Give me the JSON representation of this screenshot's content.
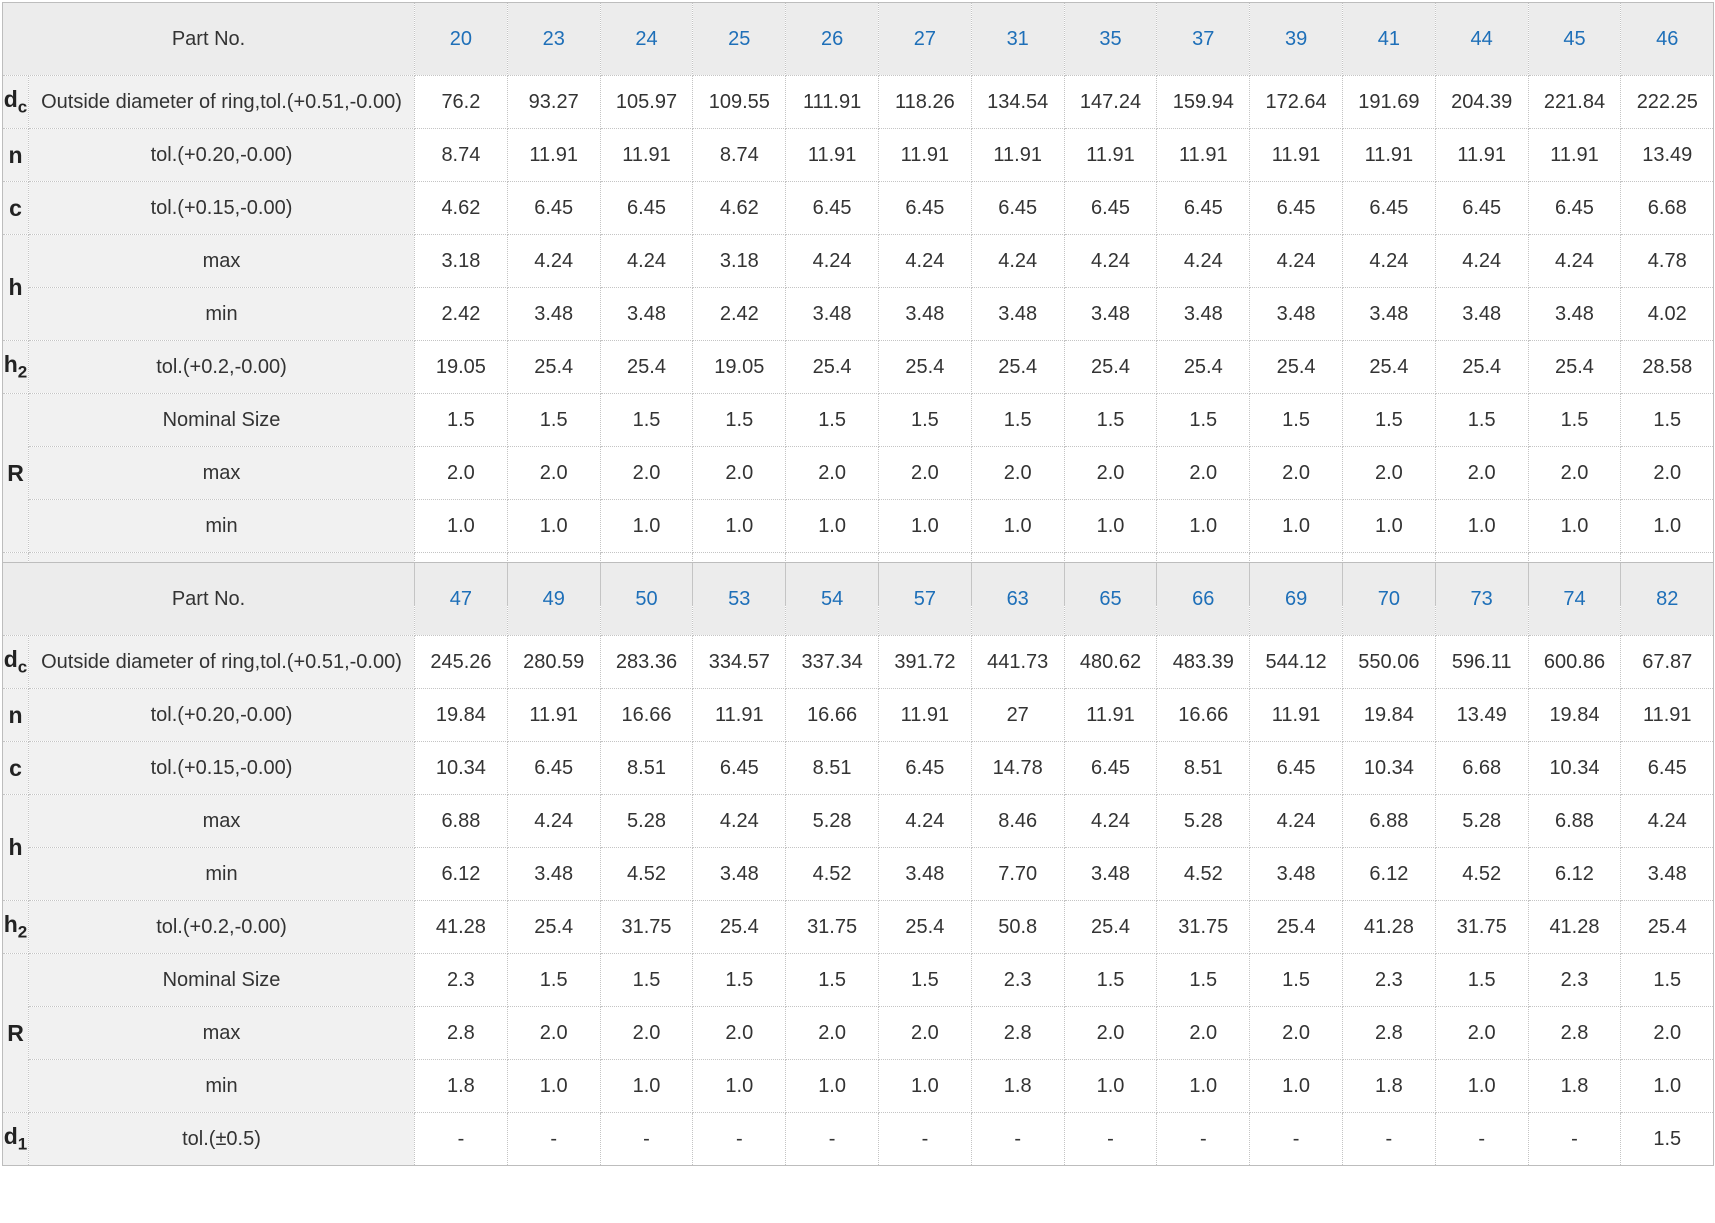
{
  "header_label": "Part No.",
  "row_labels": [
    {
      "sym": "d",
      "sub": "c",
      "desc": "Outside diameter of ring,tol.(+0.51,-0.00)"
    },
    {
      "sym": "n",
      "sub": "",
      "desc": "tol.(+0.20,-0.00)"
    },
    {
      "sym": "c",
      "sub": "",
      "desc": "tol.(+0.15,-0.00)"
    },
    {
      "sym": "h",
      "sub": "",
      "desc": "max"
    },
    {
      "sym": "",
      "sub": "",
      "desc": "min"
    },
    {
      "sym": "h",
      "sub": "2",
      "desc": "tol.(+0.2,-0.00)"
    },
    {
      "sym": "R",
      "sub": "",
      "desc": "Nominal Size"
    },
    {
      "sym": "",
      "sub": "",
      "desc": "max"
    },
    {
      "sym": "",
      "sub": "",
      "desc": "min"
    },
    {
      "sym": "d",
      "sub": "1",
      "desc": "tol.(±0.5)"
    }
  ],
  "tables": [
    {
      "part_numbers": [
        "20",
        "23",
        "24",
        "25",
        "26",
        "27",
        "31",
        "35",
        "37",
        "39",
        "41",
        "44",
        "45",
        "46"
      ],
      "rows": [
        [
          "76.2",
          "93.27",
          "105.97",
          "109.55",
          "111.91",
          "118.26",
          "134.54",
          "147.24",
          "159.94",
          "172.64",
          "191.69",
          "204.39",
          "221.84",
          "222.25"
        ],
        [
          "8.74",
          "11.91",
          "11.91",
          "8.74",
          "11.91",
          "11.91",
          "11.91",
          "11.91",
          "11.91",
          "11.91",
          "11.91",
          "11.91",
          "11.91",
          "13.49"
        ],
        [
          "4.62",
          "6.45",
          "6.45",
          "4.62",
          "6.45",
          "6.45",
          "6.45",
          "6.45",
          "6.45",
          "6.45",
          "6.45",
          "6.45",
          "6.45",
          "6.68"
        ],
        [
          "3.18",
          "4.24",
          "4.24",
          "3.18",
          "4.24",
          "4.24",
          "4.24",
          "4.24",
          "4.24",
          "4.24",
          "4.24",
          "4.24",
          "4.24",
          "4.78"
        ],
        [
          "2.42",
          "3.48",
          "3.48",
          "2.42",
          "3.48",
          "3.48",
          "3.48",
          "3.48",
          "3.48",
          "3.48",
          "3.48",
          "3.48",
          "3.48",
          "4.02"
        ],
        [
          "19.05",
          "25.4",
          "25.4",
          "19.05",
          "25.4",
          "25.4",
          "25.4",
          "25.4",
          "25.4",
          "25.4",
          "25.4",
          "25.4",
          "25.4",
          "28.58"
        ],
        [
          "1.5",
          "1.5",
          "1.5",
          "1.5",
          "1.5",
          "1.5",
          "1.5",
          "1.5",
          "1.5",
          "1.5",
          "1.5",
          "1.5",
          "1.5",
          "1.5"
        ],
        [
          "2.0",
          "2.0",
          "2.0",
          "2.0",
          "2.0",
          "2.0",
          "2.0",
          "2.0",
          "2.0",
          "2.0",
          "2.0",
          "2.0",
          "2.0",
          "2.0"
        ],
        [
          "1.0",
          "1.0",
          "1.0",
          "1.0",
          "1.0",
          "1.0",
          "1.0",
          "1.0",
          "1.0",
          "1.0",
          "1.0",
          "1.0",
          "1.0",
          "1.0"
        ],
        [
          "-",
          "-",
          "-",
          "-",
          "-",
          "-",
          "-",
          "-",
          "-",
          "-",
          "-",
          "-",
          "-",
          "-"
        ]
      ]
    },
    {
      "part_numbers": [
        "47",
        "49",
        "50",
        "53",
        "54",
        "57",
        "63",
        "65",
        "66",
        "69",
        "70",
        "73",
        "74",
        "82"
      ],
      "rows": [
        [
          "245.26",
          "280.59",
          "283.36",
          "334.57",
          "337.34",
          "391.72",
          "441.73",
          "480.62",
          "483.39",
          "544.12",
          "550.06",
          "596.11",
          "600.86",
          "67.87"
        ],
        [
          "19.84",
          "11.91",
          "16.66",
          "11.91",
          "16.66",
          "11.91",
          "27",
          "11.91",
          "16.66",
          "11.91",
          "19.84",
          "13.49",
          "19.84",
          "11.91"
        ],
        [
          "10.34",
          "6.45",
          "8.51",
          "6.45",
          "8.51",
          "6.45",
          "14.78",
          "6.45",
          "8.51",
          "6.45",
          "10.34",
          "6.68",
          "10.34",
          "6.45"
        ],
        [
          "6.88",
          "4.24",
          "5.28",
          "4.24",
          "5.28",
          "4.24",
          "8.46",
          "4.24",
          "5.28",
          "4.24",
          "6.88",
          "5.28",
          "6.88",
          "4.24"
        ],
        [
          "6.12",
          "3.48",
          "4.52",
          "3.48",
          "4.52",
          "3.48",
          "7.70",
          "3.48",
          "4.52",
          "3.48",
          "6.12",
          "4.52",
          "6.12",
          "3.48"
        ],
        [
          "41.28",
          "25.4",
          "31.75",
          "25.4",
          "31.75",
          "25.4",
          "50.8",
          "25.4",
          "31.75",
          "25.4",
          "41.28",
          "31.75",
          "41.28",
          "25.4"
        ],
        [
          "2.3",
          "1.5",
          "1.5",
          "1.5",
          "1.5",
          "1.5",
          "2.3",
          "1.5",
          "1.5",
          "1.5",
          "2.3",
          "1.5",
          "2.3",
          "1.5"
        ],
        [
          "2.8",
          "2.0",
          "2.0",
          "2.0",
          "2.0",
          "2.0",
          "2.8",
          "2.0",
          "2.0",
          "2.0",
          "2.8",
          "2.0",
          "2.8",
          "2.0"
        ],
        [
          "1.8",
          "1.0",
          "1.0",
          "1.0",
          "1.0",
          "1.0",
          "1.8",
          "1.0",
          "1.0",
          "1.0",
          "1.8",
          "1.0",
          "1.8",
          "1.0"
        ],
        [
          "-",
          "-",
          "-",
          "-",
          "-",
          "-",
          "-",
          "-",
          "-",
          "-",
          "-",
          "-",
          "-",
          "1.5"
        ]
      ]
    }
  ],
  "colors": {
    "part_number_link": "#1e6fb8",
    "header_bg": "#ececec",
    "label_bg": "#f1f1f1",
    "grid": "#c4c4c4"
  }
}
